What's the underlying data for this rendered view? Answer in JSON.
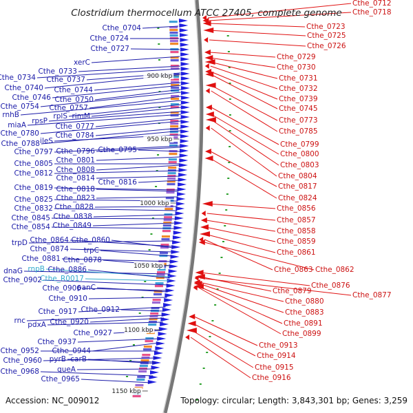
{
  "header": {
    "title": "Clostridium thermocellum ATCC 27405, complete genome"
  },
  "footer": {
    "accession": "Accession: NC_009012",
    "topology": "Topology: circular; Length: 3,843,301 bp; Genes: 3,259"
  },
  "colors": {
    "forward_label": "#1a1aa8",
    "reverse_label": "#cc1111",
    "rna_label": "#33aacc",
    "forward_feature": "#1f1fe0",
    "reverse_feature": "#e01010"
  },
  "ticks": [
    "900 kbp",
    "950 kbp",
    "1000 kbp",
    "1050 kbp",
    "1100 kbp",
    "1150 kbp"
  ],
  "left_labels": [
    "Cthe_0704",
    "Cthe_0724",
    "Cthe_0727",
    "xerC",
    "Cthe_0733",
    "Cthe_0734",
    "Cthe_0737",
    "Cthe_0740",
    "Cthe_0744",
    "Cthe_0746",
    "Cthe_0750",
    "Cthe_0754",
    "Cthe_0757",
    "rnhB",
    "rplS",
    "rimM",
    "rpsP",
    "miaA",
    "Cthe_0777",
    "Cthe_0780",
    "Cthe_0784",
    "Cthe_0788",
    "ileS",
    "Cthe_0797",
    "Cthe_0796",
    "Cthe_0795",
    "Cthe_0801",
    "Cthe_0805",
    "Cthe_0808",
    "Cthe_0812",
    "Cthe_0814",
    "Cthe_0816",
    "Cthe_0819",
    "Cthe_0818",
    "Cthe_0823",
    "Cthe_0825",
    "Cthe_0828",
    "Cthe_0832",
    "Cthe_0838",
    "Cthe_0845",
    "Cthe_0849",
    "Cthe_0854",
    "trpD",
    "Cthe_0864",
    "Cthe_0860",
    "Cthe_0874",
    "trpC",
    "Cthe_0881",
    "Cthe_0878",
    "dnaG",
    "rnpB",
    "Cthe_0886",
    "Cthe_R0017",
    "Cthe_0902",
    "Cthe_0906",
    "panC",
    "Cthe_0910",
    "Cthe_0917",
    "Cthe_0912",
    "rnc",
    "Cthe_0920",
    "pdxA",
    "Cthe_0927",
    "Cthe_0937",
    "Cthe_0944",
    "Cthe_0952",
    "Cthe_0960",
    "pyrB",
    "carB",
    "queA",
    "Cthe_0968",
    "Cthe_0965"
  ],
  "right_labels": [
    "Cthe_0712",
    "Cthe_0718",
    "Cthe_0723",
    "Cthe_0725",
    "Cthe_0726",
    "Cthe_0729",
    "Cthe_0730",
    "Cthe_0731",
    "Cthe_0732",
    "Cthe_0739",
    "Cthe_0745",
    "Cthe_0773",
    "Cthe_0785",
    "Cthe_0799",
    "Cthe_0800",
    "Cthe_0803",
    "Cthe_0804",
    "Cthe_0817",
    "Cthe_0824",
    "Cthe_0856",
    "Cthe_0857",
    "Cthe_0858",
    "Cthe_0859",
    "Cthe_0861",
    "Cthe_0863",
    "Cthe_0862",
    "Cthe_0876",
    "Cthe_0879",
    "Cthe_0877",
    "Cthe_0880",
    "Cthe_0883",
    "Cthe_0891",
    "Cthe_0899",
    "Cthe_0913",
    "Cthe_0914",
    "Cthe_0915",
    "Cthe_0916"
  ]
}
